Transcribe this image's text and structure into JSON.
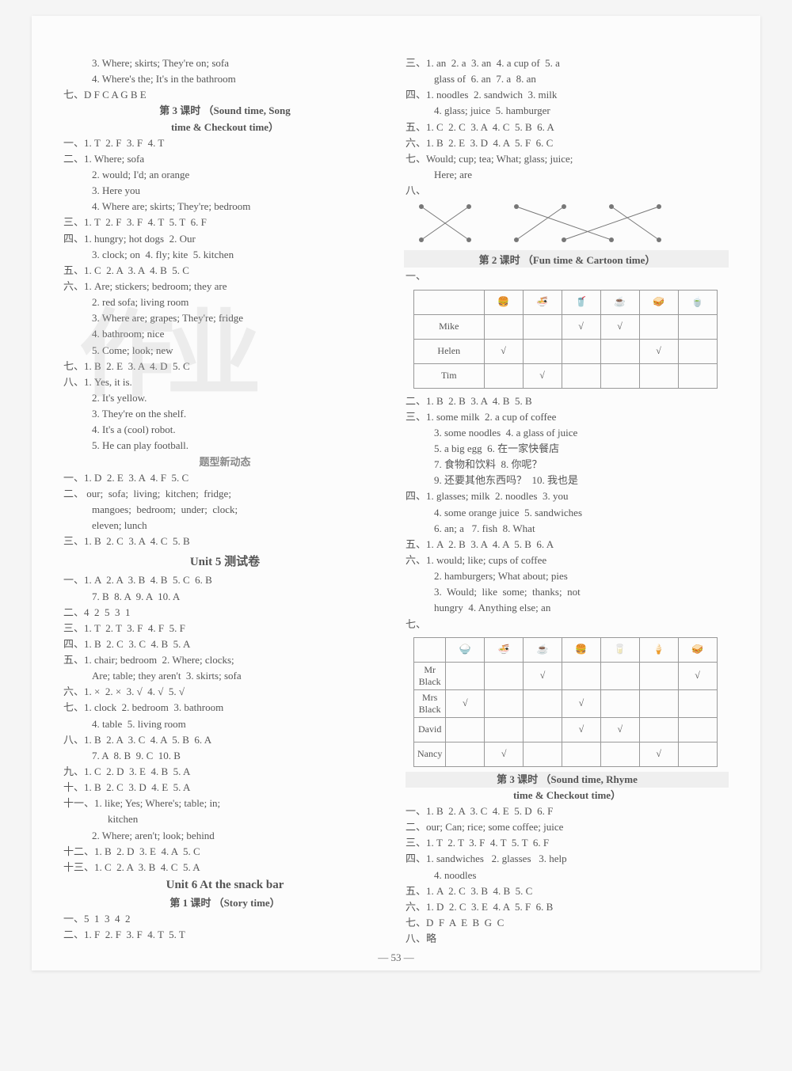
{
  "page_number": "— 53 —",
  "watermark_text": "作业",
  "left": {
    "l1": "3. Where; skirts; They're on; sofa",
    "l2": "4. Where's the; It's in the bathroom",
    "l3": "七、D F C A G B E",
    "sec1_title1": "第 3 课时 （Sound time, Song",
    "sec1_title2": "time & Checkout time）",
    "s1_1": "一、1. T  2. F  3. F  4. T",
    "s1_2": "二、1. Where; sofa",
    "s1_3": "2. would; I'd; an orange",
    "s1_4": "3. Here you",
    "s1_5": "4. Where are; skirts; They're; bedroom",
    "s1_6": "三、1. T  2. F  3. F  4. T  5. T  6. F",
    "s1_7": "四、1. hungry; hot dogs  2. Our",
    "s1_8": "3. clock; on  4. fly; kite  5. kitchen",
    "s1_9": "五、1. C  2. A  3. A  4. B  5. C",
    "s1_10": "六、1. Are; stickers; bedroom; they are",
    "s1_11": "2. red sofa; living room",
    "s1_12": "3. Where are; grapes; They're; fridge",
    "s1_13": "4. bathroom; nice",
    "s1_14": "5. Come; look; new",
    "s1_15": "七、1. B  2. E  3. A  4. D  5. C",
    "s1_16": "八、1. Yes, it is.",
    "s1_17": "2. It's yellow.",
    "s1_18": "3. They're on the shelf.",
    "s1_19": "4. It's a (cool) robot.",
    "s1_20": "5. He can play football.",
    "title_new": "题型新动态",
    "n1": "一、1. D  2. E  3. A  4. F  5. C",
    "n2": "二、 our;  sofa;  living;  kitchen;  fridge;",
    "n3": "mangoes;  bedroom;  under;  clock;",
    "n4": "eleven; lunch",
    "n5": "三、1. B  2. C  3. A  4. C  5. B",
    "unit5": "Unit 5 测试卷",
    "u5_1": "一、1. A  2. A  3. B  4. B  5. C  6. B",
    "u5_2": "7. B  8. A  9. A  10. A",
    "u5_3": "二、4  2  5  3  1",
    "u5_4": "三、1. T  2. T  3. F  4. F  5. F",
    "u5_5": "四、1. B  2. C  3. C  4. B  5. A",
    "u5_6": "五、1. chair; bedroom  2. Where; clocks;",
    "u5_7": "Are; table; they aren't  3. skirts; sofa",
    "u5_8": "六、1. ×  2. ×  3. √  4. √  5. √",
    "u5_9": "七、1. clock  2. bedroom  3. bathroom",
    "u5_10": "4. table  5. living room",
    "u5_11": "八、1. B  2. A  3. C  4. A  5. B  6. A",
    "u5_12": "7. A  8. B  9. C  10. B",
    "u5_13": "九、1. C  2. D  3. E  4. B  5. A",
    "u5_14": "十、1. B  2. C  3. D  4. E  5. A",
    "u5_15": "十一、1. like; Yes; Where's; table; in;",
    "u5_16": "kitchen",
    "u5_17": "2. Where; aren't; look; behind",
    "u5_18": "十二、1. B  2. D  3. E  4. A  5. C",
    "u5_19": "十三、1. C  2. A  3. B  4. C  5. A",
    "unit6": "Unit 6  At the snack bar",
    "u6_title1": "第 1 课时 （Story time）",
    "u6_1": "一、5  1  3  4  2",
    "u6_2": "二、1. F  2. F  3. F  4. T  5. T"
  },
  "right": {
    "r1": "三、1. an  2. a  3. an  4. a cup of  5. a",
    "r2": "glass of  6. an  7. a  8. an",
    "r3": "四、1. noodles  2. sandwich  3. milk",
    "r4": "4. glass; juice  5. hamburger",
    "r5": "五、1. C  2. C  3. A  4. C  5. B  6. A",
    "r6": "六、1. B  2. E  3. D  4. A  5. F  6. C",
    "r7": "七、Would; cup; tea; What; glass; juice;",
    "r8": "Here; are",
    "r9": "八、",
    "sec2_title": "第 2 课时 （Fun time & Cartoon time）",
    "r_sec2_pre": "一、",
    "table1": {
      "rows": [
        "Mike",
        "Helen",
        "Tim"
      ],
      "cols": 6,
      "checks": [
        [
          false,
          false,
          true,
          true,
          false,
          false
        ],
        [
          true,
          false,
          false,
          false,
          true,
          false
        ],
        [
          false,
          true,
          false,
          false,
          false,
          false
        ]
      ]
    },
    "r10": "二、1. B  2. B  3. A  4. B  5. B",
    "r11": "三、1. some milk  2. a cup of coffee",
    "r12": "3. some noodles  4. a glass of juice",
    "r13": "5. a big egg  6. 在一家快餐店",
    "r14": "7. 食物和饮料  8. 你呢？",
    "r15": "9. 还要其他东西吗？  10. 我也是",
    "r16": "四、1. glasses; milk  2. noodles  3. you",
    "r17": "4. some orange juice  5. sandwiches",
    "r18": "6. an; a   7. fish  8. What",
    "r19": "五、1. A  2. B  3. A  4. A  5. B  6. A",
    "r20": "六、1. would; like; cups of coffee",
    "r21": "2. hamburgers; What about; pies",
    "r22": "3.  Would;  like  some;  thanks;  not",
    "r23": "hungry  4. Anything else; an",
    "r24": "七、",
    "table2": {
      "rows": [
        "Mr Black",
        "Mrs Black",
        "David",
        "Nancy"
      ],
      "cols": 7,
      "checks": [
        [
          false,
          false,
          true,
          false,
          false,
          false,
          true
        ],
        [
          true,
          false,
          false,
          true,
          false,
          false,
          false
        ],
        [
          false,
          false,
          false,
          true,
          true,
          false,
          false
        ],
        [
          false,
          true,
          false,
          false,
          false,
          true,
          false
        ]
      ]
    },
    "sec3_title1": "第 3 课时 （Sound time, Rhyme",
    "sec3_title2": "time & Checkout time）",
    "s3_1": "一、1. B  2. A  3. C  4. E  5. D  6. F",
    "s3_2": "二、our; Can; rice; some coffee; juice",
    "s3_3": "三、1. T  2. T  3. F  4. T  5. T  6. F",
    "s3_4": "四、1. sandwiches   2. glasses   3. help",
    "s3_5": "4. noodles",
    "s3_6": "五、1. A  2. C  3. B  4. B  5. C",
    "s3_7": "六、1. D  2. C  3. E  4. A  5. F  6. B",
    "s3_8": "七、D  F  A  E  B  G  C",
    "s3_9": "八、略"
  }
}
